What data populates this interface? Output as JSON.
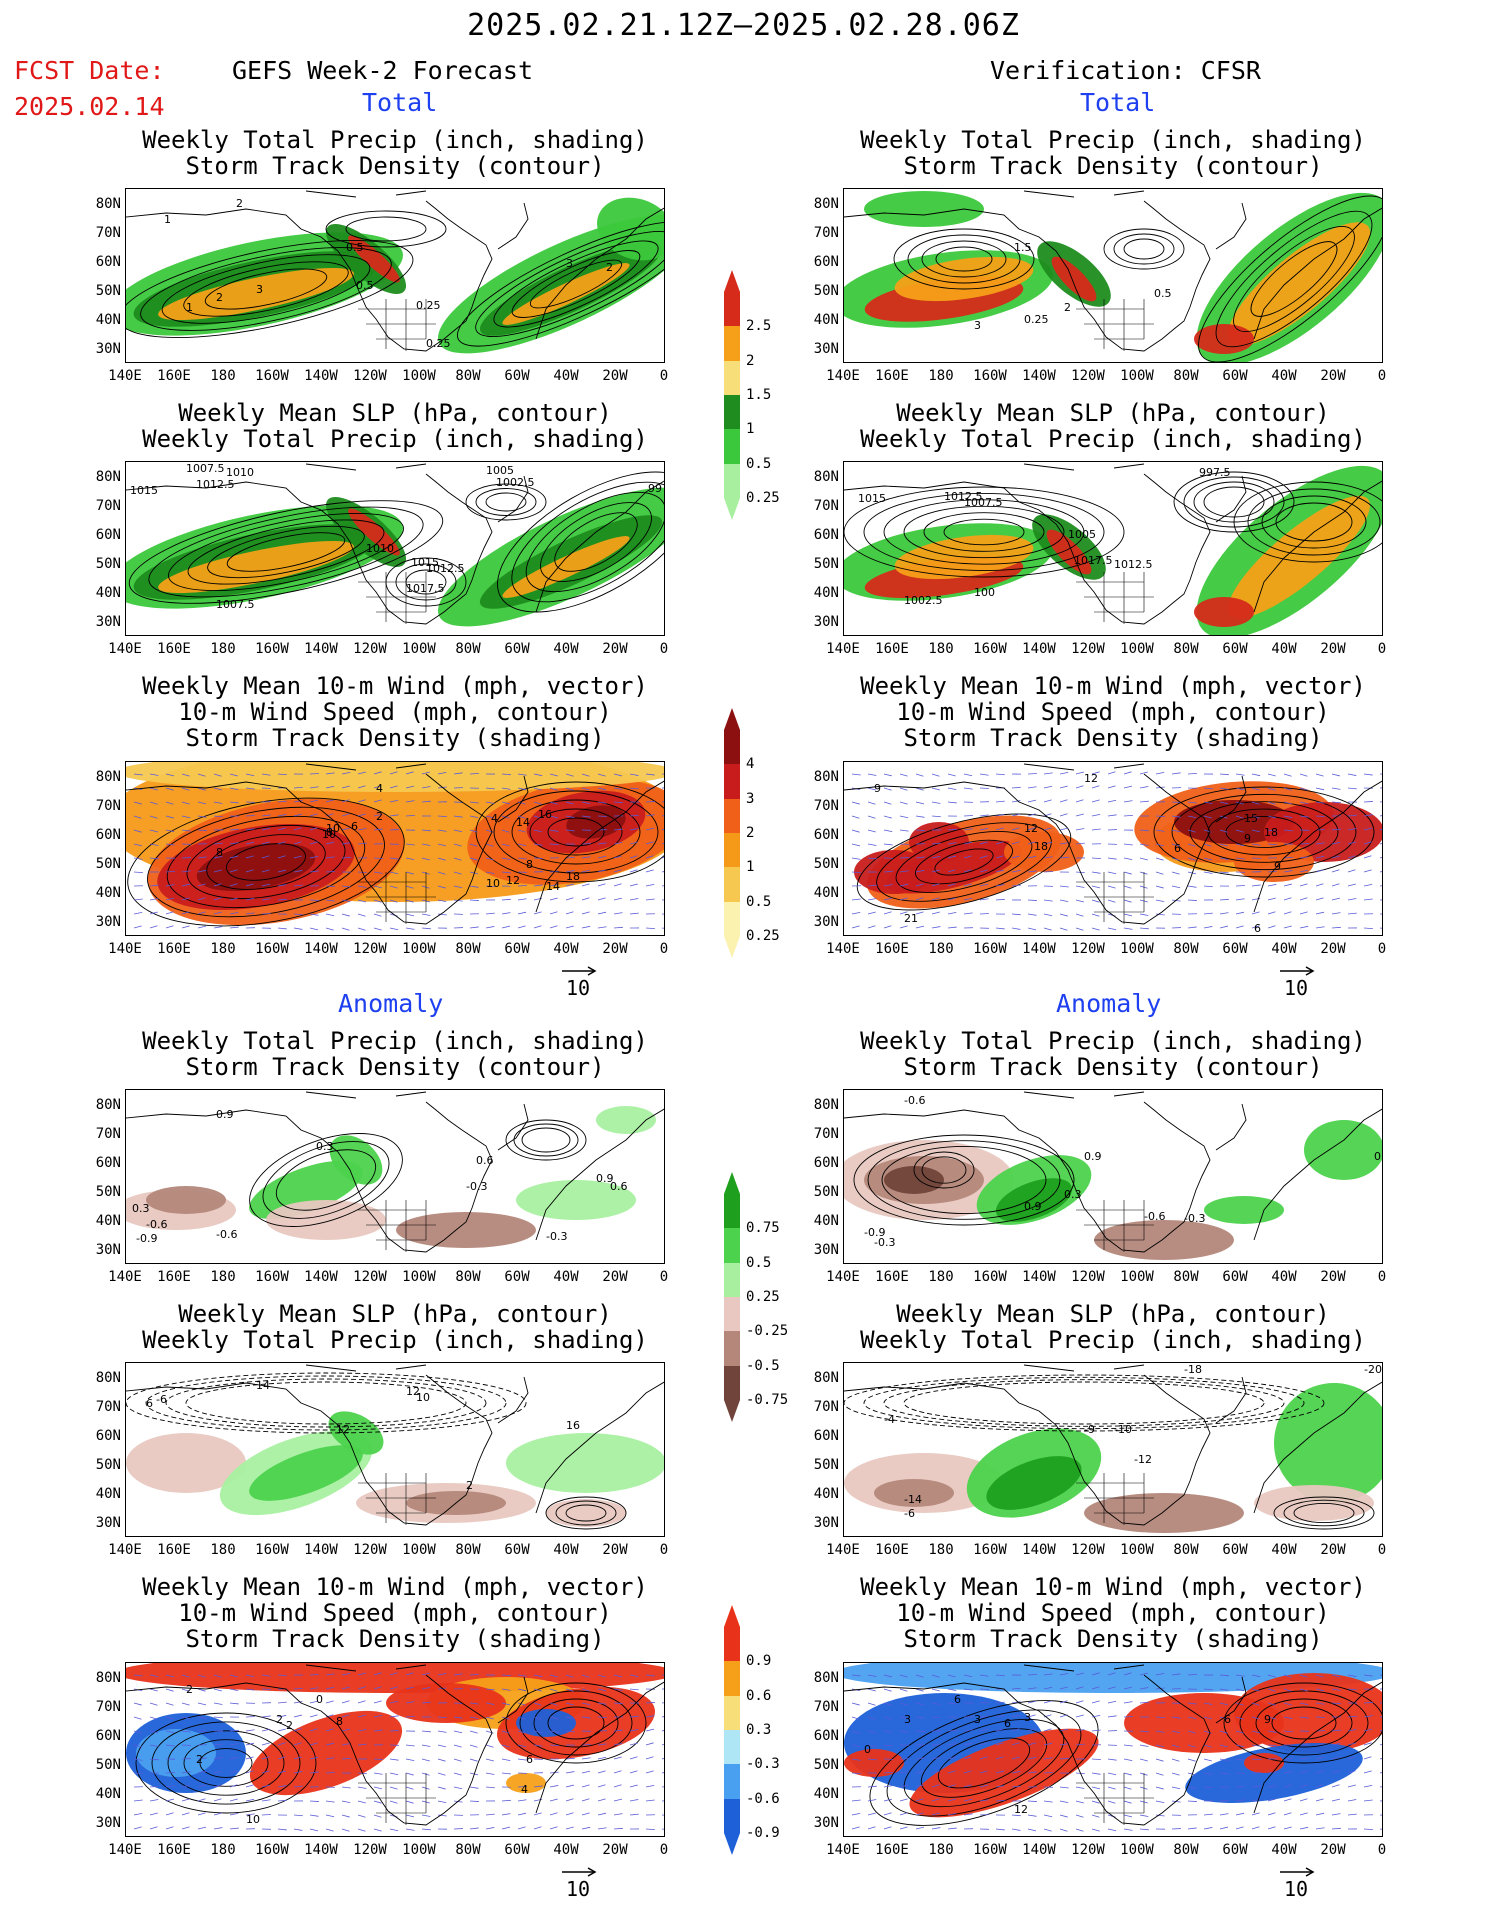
{
  "header": {
    "title": "2025.02.21.12Z–2025.02.28.06Z",
    "fcst_label": "FCST Date:",
    "fcst_date": "2025.02.14",
    "left_column": "GEFS Week-2 Forecast",
    "right_column": "Verification: CFSR"
  },
  "sections": {
    "total": "Total",
    "anomaly": "Anomaly"
  },
  "panel_titles": {
    "precip_storm": [
      "Weekly Total Precip (inch, shading)",
      "Storm Track Density (contour)"
    ],
    "slp_precip": [
      "Weekly Mean SLP (hPa, contour)",
      "Weekly Total Precip (inch, shading)"
    ],
    "wind_storm": [
      "Weekly Mean 10-m Wind (mph, vector)",
      "10-m Wind Speed (mph, contour)",
      "Storm Track Density (shading)"
    ]
  },
  "axes": {
    "lat_labels": [
      "80N",
      "70N",
      "60N",
      "50N",
      "40N",
      "30N"
    ],
    "lon_labels": [
      "140E",
      "160E",
      "180",
      "160W",
      "140W",
      "120W",
      "100W",
      "80W",
      "60W",
      "40W",
      "20W",
      "0"
    ]
  },
  "vector_reference": "10",
  "colorbars": {
    "total_precip": {
      "labels": [
        "2.5",
        "2",
        "1.5",
        "1",
        "0.5",
        "0.25"
      ],
      "colors": [
        "#d62a1a",
        "#f5a018",
        "#f7de78",
        "#1e8c1e",
        "#3cc83c",
        "#a8f0a0"
      ]
    },
    "total_storm": {
      "labels": [
        "4",
        "3",
        "2",
        "1",
        "0.5",
        "0.25"
      ],
      "colors": [
        "#8c1010",
        "#c81c1c",
        "#f06018",
        "#f59a18",
        "#f7c850",
        "#fbf2b0"
      ]
    },
    "anom_precip": {
      "labels": [
        "0.75",
        "0.5",
        "0.25",
        "-0.25",
        "-0.5",
        "-0.75"
      ],
      "colors": [
        "#1ea01e",
        "#4cd24c",
        "#a8f0a0",
        "#e8c8c0",
        "#b4877a",
        "#70443a"
      ]
    },
    "anom_storm": {
      "labels": [
        "0.9",
        "0.6",
        "0.3",
        "-0.3",
        "-0.6",
        "-0.9"
      ],
      "colors": [
        "#e8331a",
        "#f5a018",
        "#f7de78",
        "#aee6f5",
        "#4aa0f0",
        "#1e60d8"
      ]
    }
  },
  "map_labels": {
    "fc_precip": [
      "2",
      "1",
      "0.25",
      "0.5",
      "1",
      "2",
      "3",
      "0.5",
      "3",
      "2",
      "0.25"
    ],
    "obs_precip": [
      "1.5",
      "3",
      "0.25",
      "2",
      "0.5"
    ],
    "fc_slp": [
      "1007.5",
      "1010",
      "1012.5",
      "1015",
      "1005",
      "1002.5",
      "1010",
      "1012.5",
      "1015",
      "1017.5",
      "1007.5",
      "99"
    ],
    "obs_slp": [
      "1015",
      "1012.5",
      "1007.5",
      "997.5",
      "1005",
      "1017.5",
      "1012.5",
      "1002.5",
      "100"
    ],
    "fc_wind": [
      "4",
      "2",
      "4",
      "6",
      "10",
      "8",
      "10",
      "14",
      "8",
      "18",
      "16",
      "8",
      "10",
      "12",
      "14"
    ],
    "obs_wind": [
      "9",
      "12",
      "9",
      "12",
      "18",
      "6",
      "15",
      "18",
      "9",
      "21",
      "6"
    ],
    "fa_precip": [
      "0.9",
      "-0.6",
      "0.3",
      "-0.9",
      "-0.6",
      "-0.3",
      "0.9",
      "0.6",
      "-0.3",
      "0.3",
      "0.6"
    ],
    "oa_precip": [
      "-0.6",
      "0.9",
      "0.3",
      "-0.9",
      "-0.3",
      "0.9",
      "-0.6",
      "-0.3",
      "0"
    ],
    "fa_slp": [
      "14",
      "12",
      "10",
      "12",
      "16",
      "6",
      "2",
      "-6"
    ],
    "oa_slp": [
      "-18",
      "-20",
      "-4",
      "-10",
      "-12",
      "-14",
      "-6",
      "-9"
    ],
    "fa_wind": [
      "2",
      "0",
      "2",
      "2",
      "8",
      "2",
      "6",
      "4",
      "10"
    ],
    "oa_wind": [
      "3",
      "0",
      "6",
      "3",
      "6",
      "3",
      "6",
      "9",
      "12"
    ]
  }
}
